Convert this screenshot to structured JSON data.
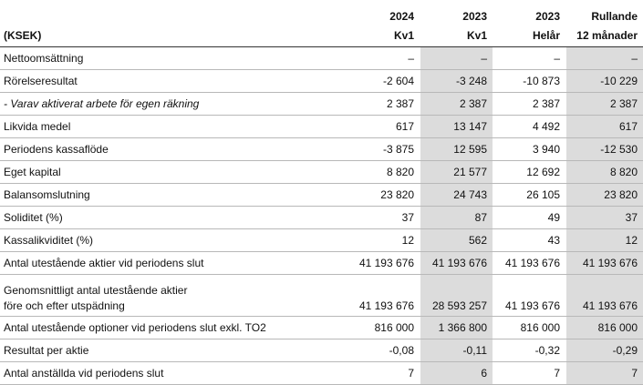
{
  "header": {
    "row1": [
      "",
      "2024",
      "2023",
      "2023",
      "Rullande"
    ],
    "row2": [
      "(KSEK)",
      "Kv1",
      "Kv1",
      "Helår",
      "12 månader"
    ]
  },
  "rows": [
    {
      "label": "Nettoomsättning",
      "italic": false,
      "values": [
        "–",
        "–",
        "–",
        "–"
      ]
    },
    {
      "label": "Rörelseresultat",
      "italic": false,
      "values": [
        "-2 604",
        "-3 248",
        "-10 873",
        "-10 229"
      ]
    },
    {
      "label": "- Varav aktiverat arbete för egen räkning",
      "italic": true,
      "values": [
        "2 387",
        "2 387",
        "2 387",
        "2 387"
      ]
    },
    {
      "label": "Likvida medel",
      "italic": false,
      "values": [
        "617",
        "13 147",
        "4 492",
        "617"
      ]
    },
    {
      "label": "Periodens kassaflöde",
      "italic": false,
      "values": [
        "-3 875",
        "12 595",
        "3 940",
        "-12 530"
      ]
    },
    {
      "label": "Eget kapital",
      "italic": false,
      "values": [
        "8 820",
        "21 577",
        "12 692",
        "8 820"
      ]
    },
    {
      "label": "Balansomslutning",
      "italic": false,
      "values": [
        "23 820",
        "24 743",
        "26 105",
        "23 820"
      ]
    },
    {
      "label": "Soliditet (%)",
      "italic": false,
      "values": [
        "37",
        "87",
        "49",
        "37"
      ]
    },
    {
      "label": "Kassalikviditet (%)",
      "italic": false,
      "values": [
        "12",
        "562",
        "43",
        "12"
      ]
    },
    {
      "label": "Antal utestående aktier vid periodens slut",
      "italic": false,
      "values": [
        "41 193 676",
        "41 193 676",
        "41 193 676",
        "41 193 676"
      ]
    },
    {
      "label": "Genomsnittligt antal utestående aktier",
      "label2": "före och efter utspädning",
      "italic": false,
      "values": [
        "41 193 676",
        "28 593 257",
        "41 193 676",
        "41 193 676"
      ]
    },
    {
      "label": "Antal utestående optioner vid periodens slut exkl. TO2",
      "italic": false,
      "values": [
        "816 000",
        "1 366 800",
        "816 000",
        "816 000"
      ]
    },
    {
      "label": "Resultat per aktie",
      "italic": false,
      "values": [
        "-0,08",
        "-0,11",
        "-0,32",
        "-0,29"
      ]
    },
    {
      "label": "Antal anställda vid periodens slut",
      "italic": false,
      "values": [
        "7",
        "6",
        "7",
        "7"
      ]
    }
  ]
}
